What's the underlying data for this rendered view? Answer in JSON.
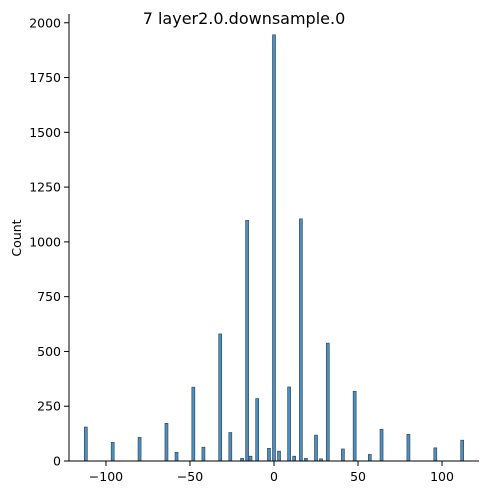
{
  "chart_data": {
    "type": "bar",
    "title": "7  layer2.0.downsample.0",
    "xlabel": "",
    "ylabel": "Count",
    "xlim": [
      -122,
      122
    ],
    "ylim": [
      0,
      2040
    ],
    "xticks": [
      -100,
      -50,
      0,
      50,
      100
    ],
    "xtick_labels": [
      "−100",
      "−50",
      "0",
      "50",
      "100"
    ],
    "yticks": [
      0,
      250,
      500,
      750,
      1000,
      1250,
      1500,
      1750,
      2000
    ],
    "ytick_labels": [
      "0",
      "250",
      "500",
      "750",
      "1000",
      "1250",
      "1500",
      "1750",
      "2000"
    ],
    "bar_color": "#4c8ebd",
    "bin_width": 1.8,
    "bars": [
      {
        "x": -112,
        "count": 155
      },
      {
        "x": -96,
        "count": 85
      },
      {
        "x": -80,
        "count": 108
      },
      {
        "x": -64,
        "count": 172
      },
      {
        "x": -58,
        "count": 40
      },
      {
        "x": -48,
        "count": 337
      },
      {
        "x": -42,
        "count": 63
      },
      {
        "x": -32,
        "count": 580
      },
      {
        "x": -26,
        "count": 130
      },
      {
        "x": -19,
        "count": 12
      },
      {
        "x": -16,
        "count": 1098
      },
      {
        "x": -14,
        "count": 22
      },
      {
        "x": -10,
        "count": 285
      },
      {
        "x": -3,
        "count": 58
      },
      {
        "x": 0,
        "count": 1945
      },
      {
        "x": 3,
        "count": 45
      },
      {
        "x": 9,
        "count": 338
      },
      {
        "x": 12,
        "count": 22
      },
      {
        "x": 16,
        "count": 1105
      },
      {
        "x": 19,
        "count": 12
      },
      {
        "x": 25,
        "count": 118
      },
      {
        "x": 28,
        "count": 10
      },
      {
        "x": 32,
        "count": 538
      },
      {
        "x": 41,
        "count": 55
      },
      {
        "x": 48,
        "count": 318
      },
      {
        "x": 57,
        "count": 30
      },
      {
        "x": 64,
        "count": 145
      },
      {
        "x": 80,
        "count": 122
      },
      {
        "x": 96,
        "count": 60
      },
      {
        "x": 112,
        "count": 95
      }
    ]
  }
}
